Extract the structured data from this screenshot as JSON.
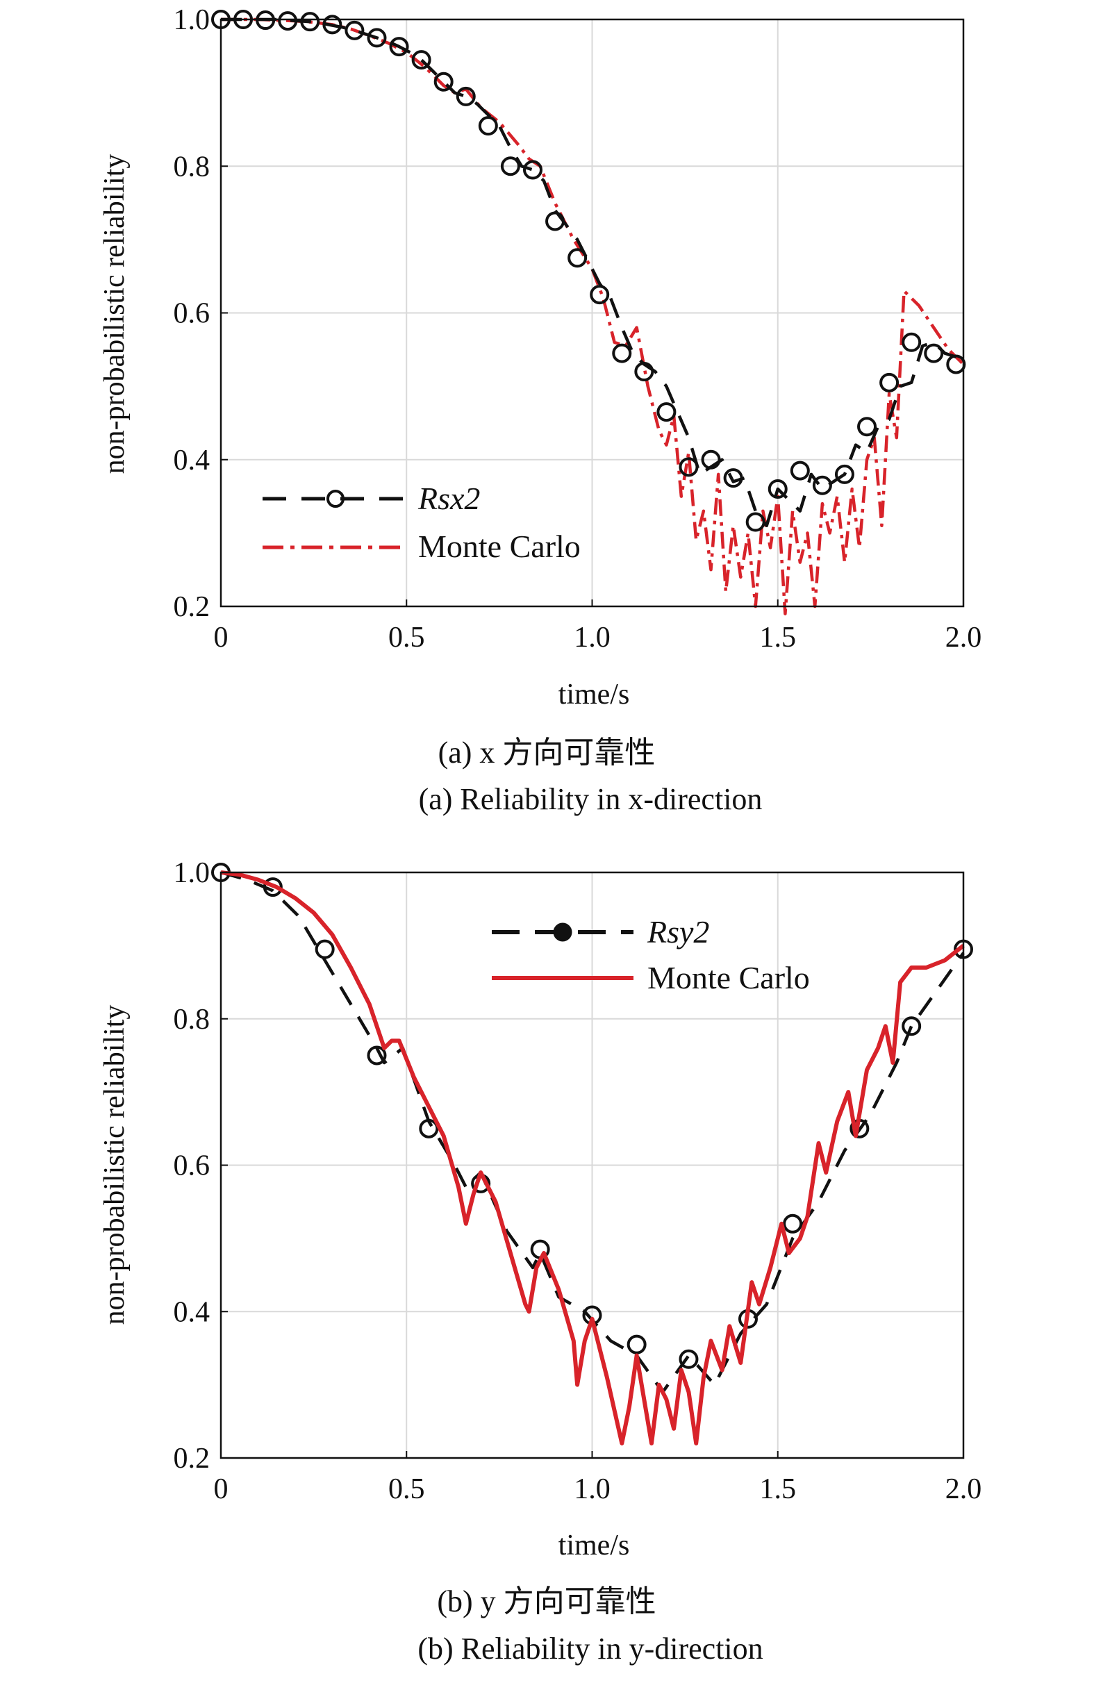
{
  "chart_data": [
    {
      "type": "line",
      "xlabel": "time/s",
      "ylabel": "non-probabilistic reliability",
      "xlim": [
        0,
        2.0
      ],
      "ylim": [
        0.2,
        1.0
      ],
      "xticks": [
        "0",
        "0.5",
        "1.0",
        "1.5",
        "2.0"
      ],
      "yticks": [
        "0.2",
        "0.4",
        "0.6",
        "0.8",
        "1.0"
      ],
      "grid": true,
      "legend_position": "lower-left",
      "caption_cn": "(a) x 方向可靠性",
      "caption_en": "(a) Reliability in x-direction",
      "series": [
        {
          "name": "Rsx2",
          "color": "#111111",
          "style": "dashed-circle-markers",
          "x": [
            0,
            0.03,
            0.06,
            0.09,
            0.12,
            0.15,
            0.18,
            0.21,
            0.24,
            0.27,
            0.3,
            0.33,
            0.36,
            0.39,
            0.42,
            0.45,
            0.48,
            0.51,
            0.54,
            0.57,
            0.6,
            0.63,
            0.66,
            0.69,
            0.72,
            0.75,
            0.78,
            0.81,
            0.84,
            0.87,
            0.9,
            0.93,
            0.96,
            0.99,
            1.02,
            1.05,
            1.08,
            1.11,
            1.14,
            1.17,
            1.2,
            1.23,
            1.26,
            1.29,
            1.32,
            1.35,
            1.38,
            1.41,
            1.44,
            1.47,
            1.5,
            1.53,
            1.56,
            1.59,
            1.62,
            1.65,
            1.68,
            1.71,
            1.74,
            1.77,
            1.8,
            1.83,
            1.86,
            1.89,
            1.92,
            1.95,
            1.98,
            2.0
          ],
          "y": [
            1.0,
            1.0,
            1.0,
            1.0,
            1.0,
            1.0,
            0.999,
            0.998,
            0.997,
            0.995,
            0.992,
            0.989,
            0.985,
            0.98,
            0.975,
            0.97,
            0.963,
            0.955,
            0.945,
            0.93,
            0.915,
            0.9,
            0.895,
            0.885,
            0.87,
            0.855,
            0.825,
            0.8,
            0.795,
            0.78,
            0.74,
            0.72,
            0.7,
            0.67,
            0.64,
            0.62,
            0.58,
            0.545,
            0.53,
            0.52,
            0.5,
            0.465,
            0.43,
            0.38,
            0.39,
            0.4,
            0.37,
            0.375,
            0.33,
            0.31,
            0.36,
            0.345,
            0.33,
            0.38,
            0.36,
            0.37,
            0.38,
            0.42,
            0.41,
            0.445,
            0.455,
            0.5,
            0.505,
            0.555,
            0.56,
            0.545,
            0.54,
            0.53
          ],
          "markers_x": [
            0,
            0.06,
            0.12,
            0.18,
            0.24,
            0.3,
            0.36,
            0.42,
            0.48,
            0.54,
            0.6,
            0.66,
            0.72,
            0.78,
            0.84,
            0.9,
            0.96,
            1.02,
            1.08,
            1.14,
            1.2,
            1.26,
            1.32,
            1.38,
            1.44,
            1.5,
            1.56,
            1.62,
            1.68,
            1.74,
            1.8,
            1.86,
            1.92,
            1.98
          ],
          "markers_y": [
            1.0,
            1.0,
            0.999,
            0.998,
            0.997,
            0.993,
            0.985,
            0.975,
            0.963,
            0.945,
            0.915,
            0.895,
            0.855,
            0.8,
            0.795,
            0.725,
            0.675,
            0.625,
            0.545,
            0.52,
            0.465,
            0.39,
            0.4,
            0.375,
            0.315,
            0.36,
            0.385,
            0.365,
            0.38,
            0.445,
            0.505,
            0.56,
            0.545,
            0.53
          ]
        },
        {
          "name": "Monte Carlo",
          "color": "#d8232a",
          "style": "dash-dot",
          "x": [
            0,
            0.05,
            0.1,
            0.15,
            0.2,
            0.25,
            0.3,
            0.35,
            0.4,
            0.45,
            0.5,
            0.55,
            0.6,
            0.63,
            0.66,
            0.7,
            0.75,
            0.8,
            0.83,
            0.86,
            0.9,
            0.95,
            1.0,
            1.03,
            1.06,
            1.09,
            1.12,
            1.15,
            1.18,
            1.2,
            1.22,
            1.24,
            1.26,
            1.28,
            1.3,
            1.32,
            1.34,
            1.36,
            1.38,
            1.4,
            1.42,
            1.44,
            1.46,
            1.48,
            1.5,
            1.52,
            1.54,
            1.56,
            1.58,
            1.6,
            1.62,
            1.64,
            1.66,
            1.68,
            1.7,
            1.72,
            1.74,
            1.76,
            1.78,
            1.8,
            1.82,
            1.84,
            1.88,
            1.92,
            1.96,
            2.0
          ],
          "y": [
            1.0,
            1.0,
            1.0,
            0.999,
            0.998,
            0.996,
            0.993,
            0.987,
            0.978,
            0.968,
            0.955,
            0.935,
            0.91,
            0.9,
            0.905,
            0.88,
            0.86,
            0.83,
            0.81,
            0.8,
            0.75,
            0.7,
            0.66,
            0.62,
            0.56,
            0.555,
            0.58,
            0.5,
            0.44,
            0.42,
            0.46,
            0.35,
            0.41,
            0.29,
            0.33,
            0.25,
            0.38,
            0.22,
            0.31,
            0.24,
            0.3,
            0.2,
            0.33,
            0.28,
            0.35,
            0.19,
            0.33,
            0.26,
            0.3,
            0.2,
            0.34,
            0.3,
            0.35,
            0.26,
            0.36,
            0.28,
            0.4,
            0.43,
            0.31,
            0.49,
            0.43,
            0.63,
            0.61,
            0.58,
            0.55,
            0.53
          ]
        }
      ]
    },
    {
      "type": "line",
      "xlabel": "time/s",
      "ylabel": "non-probabilistic reliability",
      "xlim": [
        0,
        2.0
      ],
      "ylim": [
        0.2,
        1.0
      ],
      "xticks": [
        "0",
        "0.5",
        "1.0",
        "1.5",
        "2.0"
      ],
      "yticks": [
        "0.2",
        "0.4",
        "0.6",
        "0.8",
        "1.0"
      ],
      "grid": true,
      "legend_position": "top-right",
      "caption_cn": "(b) y 方向可靠性",
      "caption_en": "(b) Reliability in y-direction",
      "series": [
        {
          "name": "Rsy2",
          "color": "#111111",
          "style": "dashed-circle-markers",
          "x": [
            0,
            0.07,
            0.14,
            0.21,
            0.28,
            0.35,
            0.42,
            0.44,
            0.49,
            0.56,
            0.63,
            0.66,
            0.7,
            0.77,
            0.84,
            0.86,
            0.91,
            0.98,
            1.05,
            1.12,
            1.19,
            1.26,
            1.33,
            1.4,
            1.47,
            1.54,
            1.61,
            1.68,
            1.75,
            1.82,
            1.86,
            1.93,
            2.0
          ],
          "y": [
            1.0,
            0.99,
            0.975,
            0.94,
            0.88,
            0.82,
            0.76,
            0.74,
            0.76,
            0.66,
            0.6,
            0.57,
            0.59,
            0.51,
            0.46,
            0.48,
            0.42,
            0.4,
            0.36,
            0.34,
            0.29,
            0.34,
            0.3,
            0.37,
            0.41,
            0.5,
            0.55,
            0.62,
            0.67,
            0.74,
            0.79,
            0.84,
            0.89
          ],
          "markers_x": [
            0,
            0.14,
            0.28,
            0.42,
            0.56,
            0.7,
            0.86,
            1.0,
            1.12,
            1.26,
            1.42,
            1.54,
            1.72,
            1.86,
            2.0
          ],
          "markers_y": [
            1.0,
            0.98,
            0.895,
            0.75,
            0.65,
            0.575,
            0.485,
            0.395,
            0.355,
            0.335,
            0.39,
            0.52,
            0.65,
            0.79,
            0.895
          ]
        },
        {
          "name": "Monte Carlo",
          "color": "#d8232a",
          "style": "solid",
          "x": [
            0,
            0.05,
            0.1,
            0.15,
            0.2,
            0.25,
            0.3,
            0.35,
            0.4,
            0.44,
            0.46,
            0.48,
            0.52,
            0.56,
            0.6,
            0.64,
            0.66,
            0.68,
            0.7,
            0.74,
            0.78,
            0.82,
            0.83,
            0.85,
            0.87,
            0.91,
            0.95,
            0.96,
            0.98,
            1.0,
            1.04,
            1.08,
            1.1,
            1.12,
            1.14,
            1.16,
            1.18,
            1.2,
            1.22,
            1.24,
            1.26,
            1.28,
            1.3,
            1.32,
            1.35,
            1.37,
            1.4,
            1.43,
            1.45,
            1.48,
            1.51,
            1.53,
            1.56,
            1.58,
            1.61,
            1.63,
            1.66,
            1.69,
            1.71,
            1.74,
            1.77,
            1.79,
            1.81,
            1.83,
            1.86,
            1.9,
            1.95,
            2.0
          ],
          "y": [
            1.0,
            0.997,
            0.99,
            0.98,
            0.965,
            0.945,
            0.915,
            0.87,
            0.82,
            0.76,
            0.77,
            0.77,
            0.72,
            0.68,
            0.64,
            0.57,
            0.52,
            0.56,
            0.59,
            0.55,
            0.48,
            0.41,
            0.4,
            0.46,
            0.48,
            0.43,
            0.36,
            0.3,
            0.36,
            0.39,
            0.31,
            0.22,
            0.27,
            0.34,
            0.28,
            0.22,
            0.3,
            0.28,
            0.24,
            0.32,
            0.29,
            0.22,
            0.31,
            0.36,
            0.32,
            0.38,
            0.33,
            0.44,
            0.41,
            0.46,
            0.52,
            0.48,
            0.5,
            0.53,
            0.63,
            0.59,
            0.66,
            0.7,
            0.64,
            0.73,
            0.76,
            0.79,
            0.74,
            0.85,
            0.87,
            0.87,
            0.88,
            0.9
          ]
        }
      ]
    }
  ]
}
